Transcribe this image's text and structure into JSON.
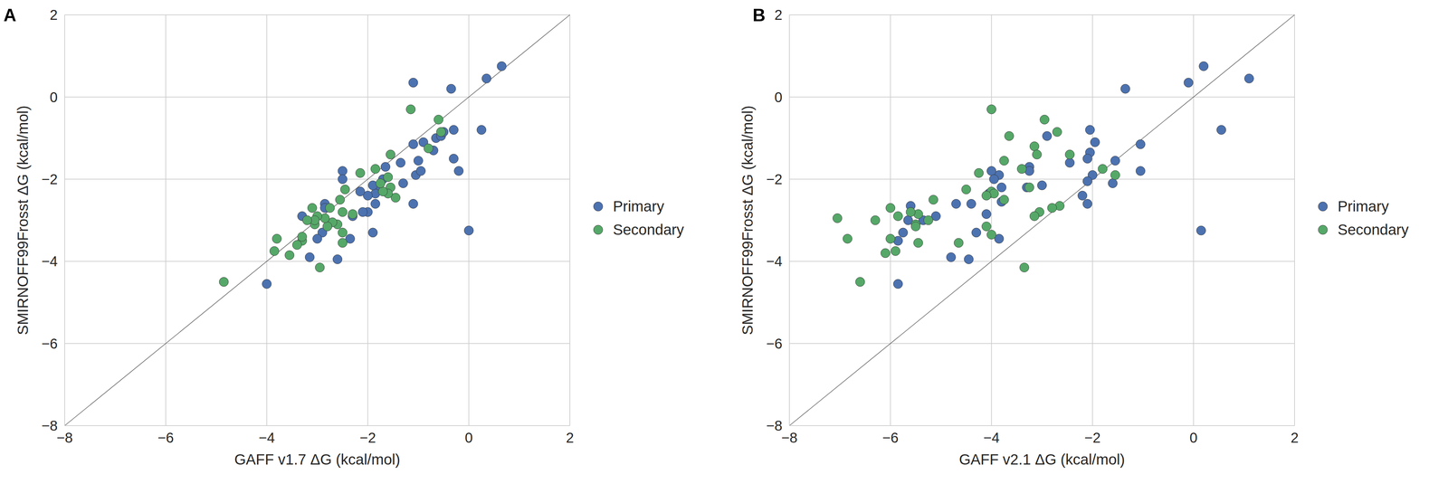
{
  "chart_data": [
    {
      "type": "scatter",
      "title": "A",
      "x_label": "GAFF v1.7 ΔG (kcal/mol)",
      "y_label": "SMIRNOFF99Frosst ΔG (kcal/mol)",
      "xlim": [
        -8,
        2
      ],
      "ylim": [
        -8,
        2
      ],
      "xticks": [
        {
          "value": -8,
          "label": "−8"
        },
        {
          "value": -6,
          "label": "−6"
        },
        {
          "value": -4,
          "label": "−4"
        },
        {
          "value": -2,
          "label": "−2"
        },
        0,
        2
      ],
      "yticks": [
        {
          "value": -8,
          "label": "−8"
        },
        {
          "value": -6,
          "label": "−6"
        },
        {
          "value": -4,
          "label": "−4"
        },
        {
          "value": -2,
          "label": "−2"
        },
        0,
        2
      ],
      "grid": true,
      "legend": "right",
      "series": [
        {
          "name": "Primary",
          "color": "#4c72b0",
          "marker": "circle",
          "x": [
            0.65,
            0.35,
            -1.1,
            -0.35,
            0.25,
            -0.3,
            -0.3,
            -0.2,
            0,
            -0.9,
            -1.1,
            -1.0,
            -1.05,
            -0.95,
            -0.7,
            -0.65,
            -1.35,
            -1.3,
            -1.1,
            -1.65,
            -1.7,
            -1.8,
            -1.85,
            -1.9,
            -1.85,
            -2.0,
            -2.0,
            -2.1,
            -1.9,
            -2.5,
            -2.5,
            -2.3,
            -2.35,
            -2.6,
            -2.85,
            -2.85,
            -2.9,
            -3.0,
            -3.15,
            -3.3,
            -4.0,
            -2.15,
            -0.55,
            -0.5
          ],
          "values": [
            0.75,
            0.45,
            0.35,
            0.2,
            -0.8,
            -0.8,
            -1.5,
            -1.8,
            -3.25,
            -1.1,
            -1.15,
            -1.55,
            -1.9,
            -1.8,
            -1.3,
            -1.0,
            -1.6,
            -2.1,
            -2.6,
            -1.7,
            -2.0,
            -2.2,
            -2.35,
            -2.15,
            -2.6,
            -2.4,
            -2.8,
            -2.8,
            -3.3,
            -1.8,
            -2.0,
            -2.9,
            -3.45,
            -3.95,
            -2.6,
            -2.7,
            -3.3,
            -3.45,
            -3.9,
            -2.9,
            -4.55,
            -2.3,
            -0.95,
            -0.85
          ]
        },
        {
          "name": "Secondary",
          "color": "#55a868",
          "marker": "circle",
          "x": [
            -1.15,
            -0.6,
            -0.55,
            -0.8,
            -1.55,
            -1.85,
            -2.15,
            -1.6,
            -1.55,
            -1.45,
            -1.6,
            -1.7,
            -2.45,
            -2.55,
            -2.5,
            -2.3,
            -2.6,
            -2.75,
            -2.7,
            -2.8,
            -2.85,
            -3.0,
            -3.05,
            -3.05,
            -3.1,
            -3.2,
            -2.5,
            -2.5,
            -3.3,
            -3.3,
            -3.4,
            -3.55,
            -3.8,
            -3.85,
            -2.95,
            -4.85,
            -1.75
          ],
          "values": [
            -0.3,
            -0.55,
            -0.85,
            -1.25,
            -1.4,
            -1.75,
            -1.85,
            -1.95,
            -2.2,
            -2.45,
            -2.35,
            -2.3,
            -2.25,
            -2.5,
            -2.8,
            -2.85,
            -3.1,
            -2.7,
            -3.05,
            -3.15,
            -2.95,
            -2.9,
            -3.1,
            -3.0,
            -2.7,
            -3.0,
            -3.3,
            -3.55,
            -3.5,
            -3.4,
            -3.6,
            -3.85,
            -3.45,
            -3.75,
            -4.15,
            -4.5,
            -2.1
          ]
        }
      ]
    },
    {
      "type": "scatter",
      "title": "B",
      "x_label": "GAFF v2.1 ΔG (kcal/mol)",
      "y_label": "SMIRNOFF99Frosst ΔG (kcal/mol)",
      "xlim": [
        -8,
        2
      ],
      "ylim": [
        -8,
        2
      ],
      "xticks": [
        {
          "value": -8,
          "label": "−8"
        },
        {
          "value": -6,
          "label": "−6"
        },
        {
          "value": -4,
          "label": "−4"
        },
        {
          "value": -2,
          "label": "−2"
        },
        0,
        2
      ],
      "yticks": [
        {
          "value": -8,
          "label": "−8"
        },
        {
          "value": -6,
          "label": "−6"
        },
        {
          "value": -4,
          "label": "−4"
        },
        {
          "value": -2,
          "label": "−2"
        },
        0,
        2
      ],
      "grid": true,
      "legend": "right",
      "series": [
        {
          "name": "Primary",
          "color": "#4c72b0",
          "marker": "circle",
          "x": [
            1.1,
            0.2,
            -0.1,
            -1.35,
            0.55,
            -2.05,
            -1.05,
            -1.05,
            -1.95,
            -2.05,
            -2.1,
            -1.55,
            -1.6,
            -2.0,
            -2.1,
            -2.2,
            -2.1,
            0.15,
            -2.9,
            -2.45,
            -3.25,
            -3.25,
            -3.0,
            -3.3,
            -3.85,
            -4.0,
            -3.95,
            -3.8,
            -4.05,
            -4.1,
            -3.8,
            -3.85,
            -4.4,
            -4.3,
            -4.7,
            -5.1,
            -5.35,
            -5.6,
            -5.65,
            -5.75,
            -5.85,
            -4.8,
            -4.45,
            -5.85
          ],
          "values": [
            0.45,
            0.75,
            0.35,
            0.2,
            -0.8,
            -0.8,
            -1.15,
            -1.8,
            -1.1,
            -1.35,
            -1.5,
            -1.55,
            -2.1,
            -1.9,
            -2.05,
            -2.4,
            -2.6,
            -3.25,
            -0.95,
            -1.6,
            -1.7,
            -1.8,
            -2.15,
            -2.2,
            -1.9,
            -1.8,
            -2.0,
            -2.2,
            -2.35,
            -2.85,
            -2.55,
            -3.45,
            -2.6,
            -3.3,
            -2.6,
            -2.9,
            -3.0,
            -2.65,
            -3.0,
            -3.3,
            -3.5,
            -3.9,
            -3.95,
            -4.55
          ]
        },
        {
          "name": "Secondary",
          "color": "#55a868",
          "marker": "circle",
          "x": [
            -4.0,
            -2.95,
            -2.7,
            -3.65,
            -3.15,
            -3.1,
            -2.45,
            -1.55,
            -1.8,
            -3.75,
            -3.4,
            -4.25,
            -4.0,
            -3.95,
            -4.5,
            -4.1,
            -3.75,
            -3.25,
            -2.65,
            -2.8,
            -3.05,
            -3.15,
            -5.15,
            -5.25,
            -5.45,
            -5.5,
            -5.5,
            -5.6,
            -5.85,
            -6.0,
            -6.3,
            -7.05,
            -6.85,
            -6.0,
            -5.9,
            -6.1,
            -5.45,
            -4.1,
            -4.0,
            -4.65,
            -3.35,
            -6.6
          ],
          "values": [
            -0.3,
            -0.55,
            -0.85,
            -0.95,
            -1.2,
            -1.4,
            -1.4,
            -1.9,
            -1.75,
            -1.55,
            -1.75,
            -1.85,
            -2.3,
            -2.35,
            -2.25,
            -2.4,
            -2.5,
            -2.2,
            -2.65,
            -2.7,
            -2.8,
            -2.9,
            -2.5,
            -3.0,
            -2.85,
            -3.1,
            -3.15,
            -2.8,
            -2.9,
            -2.7,
            -3.0,
            -2.95,
            -3.45,
            -3.45,
            -3.75,
            -3.8,
            -3.55,
            -3.15,
            -3.35,
            -3.55,
            -4.15,
            -4.5
          ]
        }
      ]
    }
  ]
}
